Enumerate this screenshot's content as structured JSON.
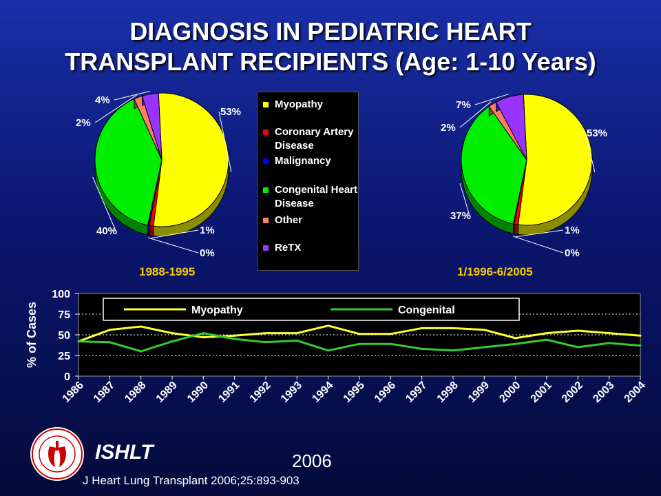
{
  "title": {
    "line1": "DIAGNOSIS IN PEDIATRIC HEART",
    "line2": "TRANSPLANT RECIPIENTS (Age: 1-10 Years)"
  },
  "legend": [
    {
      "label": "Myopathy",
      "color": "#ffff00"
    },
    {
      "label": "Coronary Artery Disease",
      "color": "#ff0000"
    },
    {
      "label": "Malignancy",
      "color": "#0000ff"
    },
    {
      "label": "Congenital Heart Disease",
      "color": "#00ee00"
    },
    {
      "label": "Other",
      "color": "#ff8060"
    },
    {
      "label": "ReTX",
      "color": "#9933ff"
    }
  ],
  "chart_data": [
    {
      "type": "pie",
      "period": "1988-1995",
      "slices": [
        {
          "label": "Myopathy",
          "value": 53,
          "display": "53%"
        },
        {
          "label": "Coronary Artery Disease",
          "value": 1,
          "display": "1%"
        },
        {
          "label": "Malignancy",
          "value": 0.4,
          "display": "0%"
        },
        {
          "label": "Congenital Heart Disease",
          "value": 40,
          "display": "40%"
        },
        {
          "label": "Other",
          "value": 2,
          "display": "2%"
        },
        {
          "label": "ReTX",
          "value": 4,
          "display": "4%"
        }
      ]
    },
    {
      "type": "pie",
      "period": "1/1996-6/2005",
      "slices": [
        {
          "label": "Myopathy",
          "value": 53,
          "display": "53%"
        },
        {
          "label": "Coronary Artery Disease",
          "value": 1,
          "display": "1%"
        },
        {
          "label": "Malignancy",
          "value": 0.2,
          "display": "0%"
        },
        {
          "label": "Congenital Heart Disease",
          "value": 37,
          "display": "37%"
        },
        {
          "label": "Other",
          "value": 2,
          "display": "2%"
        },
        {
          "label": "ReTX",
          "value": 7,
          "display": "7%"
        }
      ]
    },
    {
      "type": "line",
      "ylabel": "% of Cases",
      "ylim": [
        0,
        100
      ],
      "yticks": [
        0,
        25,
        50,
        75,
        100
      ],
      "x": [
        "1986",
        "1987",
        "1988",
        "1989",
        "1990",
        "1991",
        "1992",
        "1993",
        "1994",
        "1995",
        "1996",
        "1997",
        "1998",
        "1999",
        "2000",
        "2001",
        "2002",
        "2003",
        "2004"
      ],
      "series": [
        {
          "name": "Myopathy",
          "color": "#ffff33",
          "values": [
            42,
            56,
            60,
            52,
            47,
            49,
            52,
            52,
            61,
            51,
            51,
            58,
            58,
            56,
            46,
            52,
            55,
            52,
            49
          ]
        },
        {
          "name": "Congenital",
          "color": "#33cc33",
          "values": [
            42,
            41,
            30,
            42,
            52,
            45,
            41,
            43,
            31,
            39,
            39,
            33,
            31,
            35,
            39,
            44,
            35,
            40,
            37
          ]
        }
      ]
    }
  ],
  "footer": {
    "org": "ISHLT",
    "year": "2006",
    "citation": "J Heart Lung Transplant 2006;25:893-903"
  }
}
